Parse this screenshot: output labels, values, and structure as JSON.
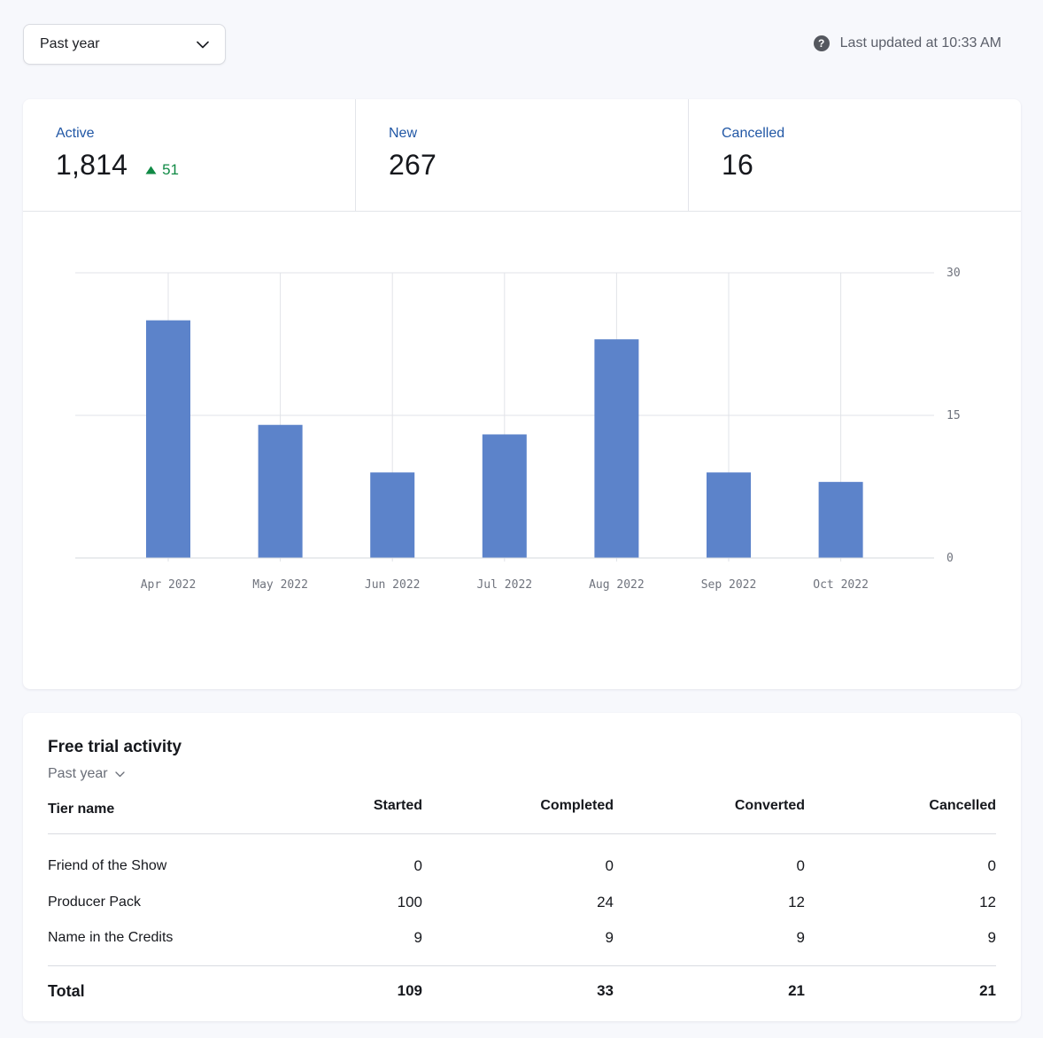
{
  "header": {
    "range_label": "Past year",
    "updated_text": "Last updated at 10:33 AM",
    "help_glyph": "?"
  },
  "stats": [
    {
      "label": "Active",
      "value": "1,814",
      "delta": "51"
    },
    {
      "label": "New",
      "value": "267"
    },
    {
      "label": "Cancelled",
      "value": "16"
    }
  ],
  "colors": {
    "accent": "#2157a5",
    "bar": "#5c83ca",
    "positive": "#108a45"
  },
  "chart_data": {
    "type": "bar",
    "categories": [
      "Apr 2022",
      "May 2022",
      "Jun 2022",
      "Jul 2022",
      "Aug 2022",
      "Sep 2022",
      "Oct 2022"
    ],
    "values": [
      25,
      14,
      9,
      13,
      23,
      9,
      8
    ],
    "yticks": [
      "0",
      "15",
      "30"
    ],
    "ylim": [
      0,
      30
    ],
    "grid": true,
    "y_axis_position": "right",
    "title": "",
    "xlabel": "",
    "ylabel": ""
  },
  "trials": {
    "title": "Free trial activity",
    "filter_label": "Past year",
    "columns": [
      "Tier name",
      "Started",
      "Completed",
      "Converted",
      "Cancelled"
    ],
    "rows": [
      {
        "name": "Friend of the Show",
        "started": "0",
        "completed": "0",
        "converted": "0",
        "cancelled": "0"
      },
      {
        "name": "Producer Pack",
        "started": "100",
        "completed": "24",
        "converted": "12",
        "cancelled": "12"
      },
      {
        "name": "Name in the Credits",
        "started": "9",
        "completed": "9",
        "converted": "9",
        "cancelled": "9"
      }
    ],
    "total": {
      "label": "Total",
      "started": "109",
      "completed": "33",
      "converted": "21",
      "cancelled": "21"
    }
  }
}
